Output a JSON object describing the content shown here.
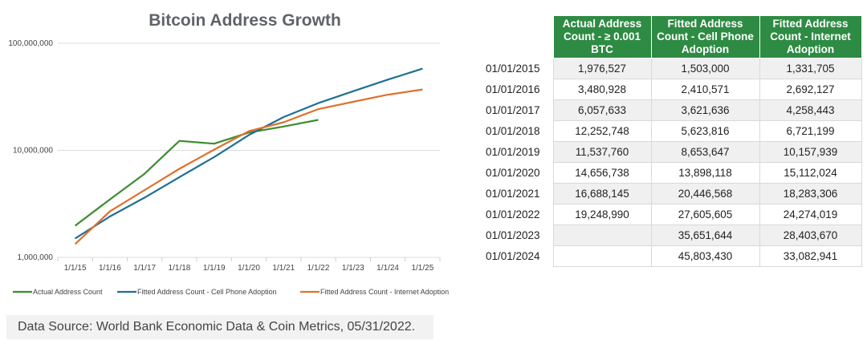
{
  "chart_data": {
    "type": "line",
    "title": "Bitcoin Address Growth",
    "y_scale": "log",
    "ylim": [
      1000000,
      100000000
    ],
    "y_ticks": [
      {
        "value": 1000000,
        "label": "1,000,000"
      },
      {
        "value": 10000000,
        "label": "10,000,000"
      },
      {
        "value": 100000000,
        "label": "100,000,000"
      }
    ],
    "x_labels": [
      "1/1/15",
      "1/1/16",
      "1/1/17",
      "1/1/18",
      "1/1/19",
      "1/1/20",
      "1/1/21",
      "1/1/22",
      "1/1/23",
      "1/1/24",
      "1/1/25"
    ],
    "x_values": [
      "1/1/15",
      "1/1/16",
      "1/1/17",
      "1/1/18",
      "1/1/19",
      "1/1/20",
      "1/1/21",
      "1/1/22",
      "1/1/23",
      "1/1/24",
      "1/1/25"
    ],
    "grid": {
      "horizontal": true,
      "vertical": false
    },
    "legend_position": "bottom",
    "series": [
      {
        "name": "Actual Address Count",
        "color": "#3c8d2f",
        "values": [
          1976527,
          3480928,
          6057633,
          12252748,
          11537760,
          14656738,
          16688145,
          19248990,
          null,
          null,
          null
        ]
      },
      {
        "name": "Fitted Address Count - Cell Phone Adoption",
        "color": "#1f6f96",
        "values": [
          1503000,
          2410571,
          3621636,
          5623816,
          8653647,
          13898118,
          20446568,
          27605605,
          35651644,
          45803430,
          58000000
        ]
      },
      {
        "name": "Fitted Address Count - Internet Adoption",
        "color": "#e0702a",
        "values": [
          1331705,
          2692127,
          4258443,
          6721199,
          10157939,
          15112024,
          18283306,
          24274019,
          28403670,
          33082941,
          37000000
        ]
      }
    ]
  },
  "source_note": "Data Source: World Bank Economic Data & Coin Metrics, 05/31/2022.",
  "table": {
    "headers": [
      "Actual Address Count - ≥ 0.001 BTC",
      "Fitted Address Count - Cell Phone Adoption",
      "Fitted Address Count - Internet Adoption"
    ],
    "rows": [
      {
        "date": "01/01/2015",
        "actual": "1,976,527",
        "cell": "1,503,000",
        "internet": "1,331,705"
      },
      {
        "date": "01/01/2016",
        "actual": "3,480,928",
        "cell": "2,410,571",
        "internet": "2,692,127"
      },
      {
        "date": "01/01/2017",
        "actual": "6,057,633",
        "cell": "3,621,636",
        "internet": "4,258,443"
      },
      {
        "date": "01/01/2018",
        "actual": "12,252,748",
        "cell": "5,623,816",
        "internet": "6,721,199"
      },
      {
        "date": "01/01/2019",
        "actual": "11,537,760",
        "cell": "8,653,647",
        "internet": "10,157,939"
      },
      {
        "date": "01/01/2020",
        "actual": "14,656,738",
        "cell": "13,898,118",
        "internet": "15,112,024"
      },
      {
        "date": "01/01/2021",
        "actual": "16,688,145",
        "cell": "20,446,568",
        "internet": "18,283,306"
      },
      {
        "date": "01/01/2022",
        "actual": "19,248,990",
        "cell": "27,605,605",
        "internet": "24,274,019"
      },
      {
        "date": "01/01/2023",
        "actual": "",
        "cell": "35,651,644",
        "internet": "28,403,670"
      },
      {
        "date": "01/01/2024",
        "actual": "",
        "cell": "45,803,430",
        "internet": "33,082,941"
      }
    ]
  }
}
